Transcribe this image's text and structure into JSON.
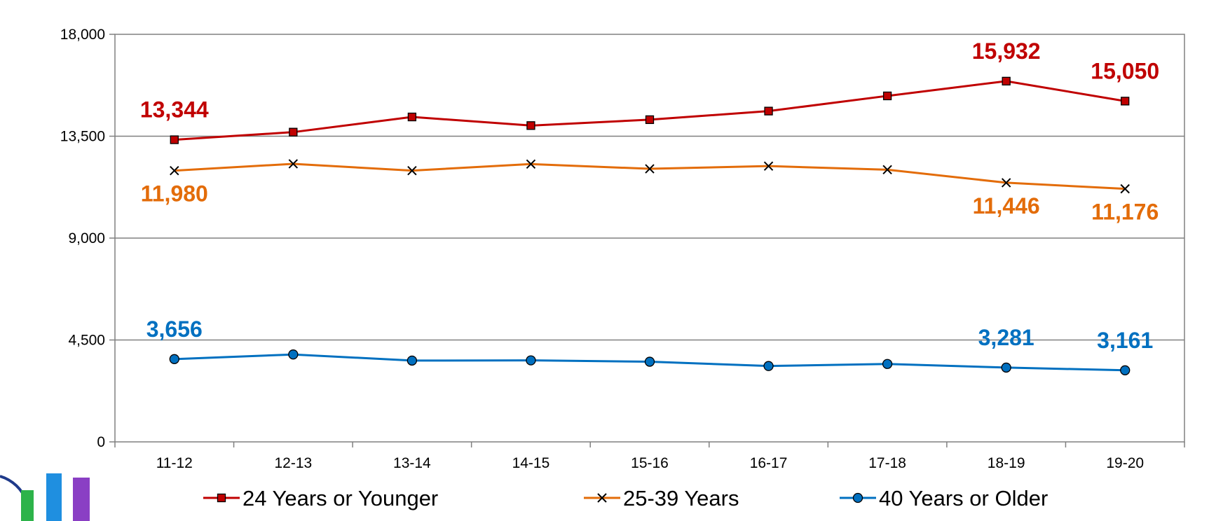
{
  "chart_data": {
    "type": "line",
    "categories": [
      "11-12",
      "12-13",
      "13-14",
      "14-15",
      "15-16",
      "16-17",
      "17-18",
      "18-19",
      "19-20"
    ],
    "ylim": [
      0,
      18000
    ],
    "yticks": [
      "0",
      "4,500",
      "9,000",
      "13,500",
      "18,000"
    ],
    "ytick_values": [
      0,
      4500,
      9000,
      13500,
      18000
    ],
    "grid": true,
    "legend_position": "bottom",
    "series": [
      {
        "name": "24 Years or Younger",
        "color": "#C00000",
        "marker": "square",
        "values": [
          13344,
          13680,
          14350,
          13970,
          14230,
          14610,
          15280,
          15932,
          15050
        ],
        "labels": [
          {
            "index": 0,
            "text": "13,344"
          },
          {
            "index": 7,
            "text": "15,932"
          },
          {
            "index": 8,
            "text": "15,050"
          }
        ]
      },
      {
        "name": "25-39 Years",
        "color": "#E36C09",
        "marker": "x",
        "values": [
          11980,
          12280,
          11980,
          12270,
          12060,
          12180,
          12020,
          11446,
          11176
        ],
        "labels": [
          {
            "index": 0,
            "text": "11,980"
          },
          {
            "index": 7,
            "text": "11,446"
          },
          {
            "index": 8,
            "text": "11,176"
          }
        ]
      },
      {
        "name": "40 Years or Older",
        "color": "#0070C0",
        "marker": "circle",
        "values": [
          3656,
          3860,
          3590,
          3600,
          3540,
          3350,
          3440,
          3281,
          3161
        ],
        "labels": [
          {
            "index": 0,
            "text": "3,656"
          },
          {
            "index": 7,
            "text": "3,281"
          },
          {
            "index": 8,
            "text": "3,161"
          }
        ]
      }
    ]
  }
}
